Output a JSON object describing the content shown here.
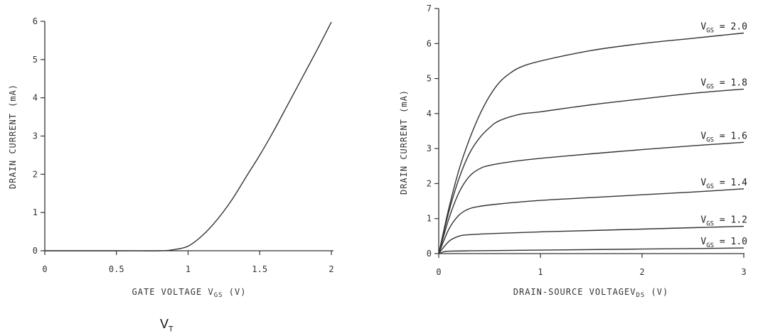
{
  "chart_data": [
    {
      "type": "line",
      "ylabel": "DRAIN CURRENT (mA)",
      "xlabel": {
        "main": "GATE VOLTAGE V",
        "sub": "GS",
        "unit": "(V)"
      },
      "xlim": [
        0,
        2
      ],
      "ylim": [
        0,
        6
      ],
      "x_ticks": [
        "0",
        "0.5",
        "1",
        "1.5",
        "2"
      ],
      "y_ticks": [
        "0",
        "1",
        "2",
        "3",
        "4",
        "5",
        "6"
      ],
      "series": [
        {
          "x": [
            0,
            0.5,
            0.8,
            0.9,
            1.0,
            1.1,
            1.2,
            1.3,
            1.4,
            1.5,
            1.6,
            1.7,
            1.8,
            1.9,
            2.0
          ],
          "y": [
            0,
            0,
            0,
            0.03,
            0.12,
            0.4,
            0.8,
            1.3,
            1.9,
            2.5,
            3.15,
            3.85,
            4.55,
            5.25,
            5.98
          ]
        }
      ],
      "footnote": {
        "main": "V",
        "sub": "T"
      }
    },
    {
      "type": "line",
      "ylabel": "DRAIN CURRENT (mA)",
      "xlabel": {
        "main": "DRAIN-SOURCE VOLTAGEV",
        "sub": "DS",
        "unit": "(V)"
      },
      "xlim": [
        0,
        3
      ],
      "ylim": [
        0,
        7
      ],
      "x_ticks": [
        "0",
        "1",
        "2",
        "3"
      ],
      "y_ticks": [
        "0",
        "1",
        "2",
        "3",
        "4",
        "5",
        "6",
        "7"
      ],
      "series": [
        {
          "label_main": "V",
          "label_sub": "GS",
          "label_value": " = 2.0",
          "x": [
            0,
            0.1,
            0.2,
            0.3,
            0.4,
            0.5,
            0.6,
            0.7,
            0.8,
            1.0,
            1.5,
            2.0,
            2.5,
            3.0
          ],
          "y": [
            0,
            1.3,
            2.4,
            3.25,
            3.95,
            4.5,
            4.9,
            5.15,
            5.32,
            5.5,
            5.8,
            6.0,
            6.15,
            6.3
          ]
        },
        {
          "label_main": "V",
          "label_sub": "GS",
          "label_value": " = 1.8",
          "x": [
            0,
            0.1,
            0.2,
            0.3,
            0.4,
            0.5,
            0.6,
            0.8,
            1.0,
            1.5,
            2.0,
            2.5,
            3.0
          ],
          "y": [
            0,
            1.2,
            2.15,
            2.85,
            3.3,
            3.6,
            3.8,
            3.98,
            4.05,
            4.25,
            4.42,
            4.58,
            4.7
          ]
        },
        {
          "label_main": "V",
          "label_sub": "GS",
          "label_value": " = 1.6",
          "x": [
            0,
            0.1,
            0.2,
            0.3,
            0.4,
            0.5,
            0.7,
            1.0,
            1.5,
            2.0,
            2.5,
            3.0
          ],
          "y": [
            0,
            1.0,
            1.75,
            2.2,
            2.42,
            2.52,
            2.62,
            2.72,
            2.85,
            2.97,
            3.08,
            3.18
          ]
        },
        {
          "label_main": "V",
          "label_sub": "GS",
          "label_value": " = 1.4",
          "x": [
            0,
            0.1,
            0.2,
            0.3,
            0.4,
            0.6,
            1.0,
            1.5,
            2.0,
            2.5,
            3.0
          ],
          "y": [
            0,
            0.7,
            1.1,
            1.28,
            1.35,
            1.42,
            1.52,
            1.6,
            1.68,
            1.76,
            1.85
          ]
        },
        {
          "label_main": "V",
          "label_sub": "GS",
          "label_value": " = 1.2",
          "x": [
            0,
            0.1,
            0.2,
            0.3,
            0.5,
            1.0,
            1.5,
            2.0,
            2.5,
            3.0
          ],
          "y": [
            0,
            0.35,
            0.5,
            0.54,
            0.57,
            0.62,
            0.66,
            0.7,
            0.74,
            0.78
          ]
        },
        {
          "label_main": "V",
          "label_sub": "GS",
          "label_value": " = 1.0",
          "x": [
            0,
            0.05,
            0.1,
            0.3,
            1.0,
            2.0,
            3.0
          ],
          "y": [
            0,
            0.05,
            0.07,
            0.08,
            0.1,
            0.13,
            0.16
          ]
        }
      ]
    }
  ]
}
